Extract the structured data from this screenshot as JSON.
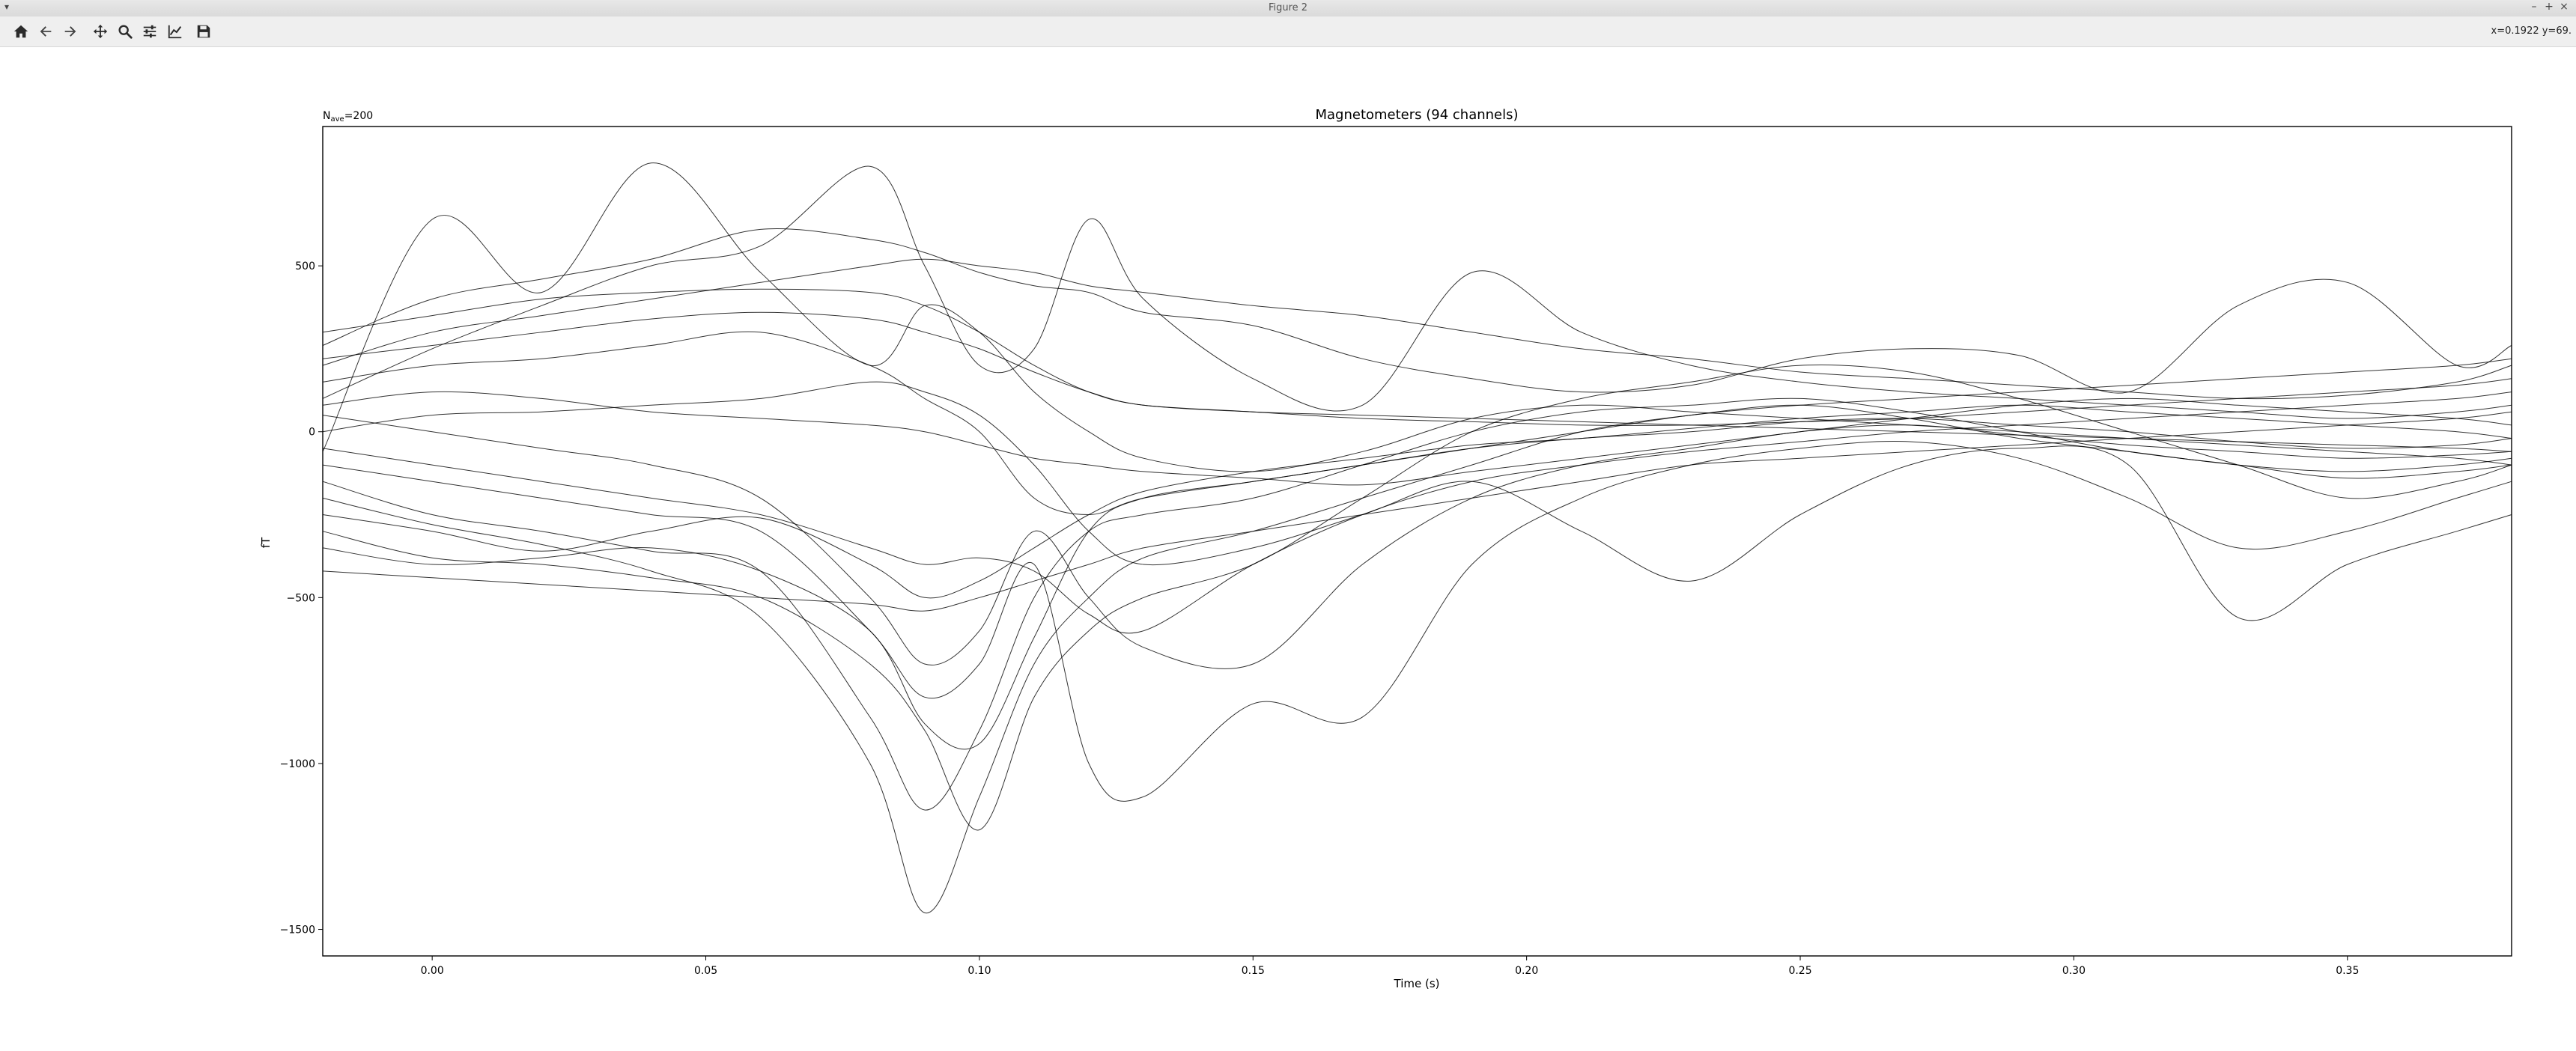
{
  "window": {
    "title": "Figure 2",
    "menu_glyph": "▾",
    "controls": [
      "–",
      "+",
      "×"
    ]
  },
  "toolbar": {
    "buttons": [
      {
        "name": "home-icon",
        "tooltip": "Reset original view"
      },
      {
        "name": "back-arrow-icon",
        "tooltip": "Back to previous view"
      },
      {
        "name": "forward-arrow-icon",
        "tooltip": "Forward to next view"
      },
      {
        "name": "pan-move-icon",
        "tooltip": "Pan axes"
      },
      {
        "name": "zoom-magnifier-icon",
        "tooltip": "Zoom to rectangle"
      },
      {
        "name": "subplots-sliders-icon",
        "tooltip": "Configure subplots"
      },
      {
        "name": "axes-edit-icon",
        "tooltip": "Edit axis, curve and image parameters"
      },
      {
        "name": "save-floppy-icon",
        "tooltip": "Save the figure"
      }
    ],
    "coords": "x=0.1922 y=69."
  },
  "colors": {
    "trace": "#000000",
    "toolbar_icon": "#2b2b2b"
  },
  "chart_data": {
    "type": "line",
    "title": "Magnetometers (94 channels)",
    "nave_label": "N",
    "nave_sub": "ave",
    "nave_value": "=200",
    "xlabel": "Time (s)",
    "ylabel": "fT",
    "xlim": [
      -0.02,
      0.38
    ],
    "ylim": [
      -1580,
      920
    ],
    "xticks": [
      0.0,
      0.05,
      0.1,
      0.15,
      0.2,
      0.25,
      0.3,
      0.35
    ],
    "xtick_labels": [
      "0.00",
      "0.05",
      "0.10",
      "0.15",
      "0.20",
      "0.25",
      "0.30",
      "0.35"
    ],
    "yticks": [
      500,
      0,
      -500,
      -1000,
      -1500
    ],
    "ytick_labels": [
      "500",
      "0",
      "−500",
      "−1000",
      "−1500"
    ],
    "n_channels": 94,
    "x": [
      -0.02,
      0.0,
      0.02,
      0.04,
      0.06,
      0.08,
      0.09,
      0.1,
      0.11,
      0.12,
      0.13,
      0.15,
      0.17,
      0.19,
      0.21,
      0.23,
      0.25,
      0.27,
      0.29,
      0.31,
      0.33,
      0.35,
      0.37,
      0.38
    ],
    "series": [
      {
        "values": [
          -60,
          640,
          420,
          810,
          480,
          200,
          380,
          300,
          120,
          0,
          -80,
          -120,
          -60,
          40,
          80,
          60,
          40,
          20,
          0,
          -20,
          -40,
          -60,
          -80,
          -100
        ]
      },
      {
        "values": [
          100,
          250,
          380,
          500,
          560,
          800,
          500,
          200,
          250,
          640,
          400,
          160,
          80,
          480,
          300,
          200,
          150,
          120,
          100,
          80,
          60,
          40,
          60,
          80
        ]
      },
      {
        "values": [
          260,
          400,
          460,
          520,
          610,
          580,
          540,
          480,
          440,
          420,
          360,
          320,
          220,
          160,
          120,
          140,
          220,
          250,
          230,
          120,
          380,
          450,
          200,
          260
        ]
      },
      {
        "values": [
          -300,
          -380,
          -400,
          -440,
          -500,
          -700,
          -900,
          -1200,
          -800,
          -600,
          -500,
          -400,
          -200,
          0,
          100,
          150,
          200,
          180,
          100,
          0,
          -100,
          -200,
          -150,
          -100
        ]
      },
      {
        "values": [
          -150,
          -250,
          -300,
          -360,
          -420,
          -860,
          -1140,
          -900,
          -500,
          -300,
          -250,
          -200,
          -100,
          0,
          60,
          80,
          100,
          60,
          0,
          -60,
          -100,
          -140,
          -120,
          -100
        ]
      },
      {
        "values": [
          -200,
          -280,
          -340,
          -420,
          -560,
          -1000,
          -1450,
          -1100,
          -700,
          -500,
          -380,
          -300,
          -200,
          -100,
          0,
          50,
          80,
          40,
          -20,
          -60,
          -100,
          -120,
          -100,
          -80
        ]
      },
      {
        "values": [
          -100,
          -150,
          -200,
          -250,
          -300,
          -600,
          -800,
          -700,
          -400,
          -1000,
          -1100,
          -820,
          -860,
          -400,
          -200,
          -100,
          -50,
          -30,
          -80,
          -200,
          -350,
          -300,
          -200,
          -150
        ]
      },
      {
        "values": [
          50,
          0,
          -50,
          -100,
          -200,
          -500,
          -700,
          -600,
          -300,
          -500,
          -650,
          -700,
          -400,
          -200,
          -100,
          -50,
          0,
          20,
          -10,
          -40,
          -60,
          -80,
          -70,
          -60
        ]
      },
      {
        "values": [
          200,
          300,
          350,
          400,
          450,
          500,
          520,
          500,
          480,
          440,
          420,
          380,
          350,
          300,
          250,
          220,
          180,
          160,
          140,
          120,
          100,
          110,
          150,
          200
        ]
      },
      {
        "values": [
          -350,
          -400,
          -380,
          -350,
          -420,
          -600,
          -880,
          -940,
          -620,
          -300,
          -200,
          -150,
          -100,
          -50,
          -20,
          0,
          30,
          40,
          20,
          0,
          -30,
          -50,
          -40,
          -20
        ]
      },
      {
        "values": [
          0,
          50,
          60,
          80,
          100,
          150,
          120,
          50,
          -100,
          -300,
          -400,
          -350,
          -250,
          -150,
          -300,
          -450,
          -250,
          -100,
          -50,
          -100,
          -560,
          -400,
          -300,
          -250
        ]
      },
      {
        "values": [
          150,
          200,
          220,
          260,
          300,
          200,
          100,
          0,
          -200,
          -250,
          -200,
          -150,
          -100,
          -50,
          0,
          50,
          80,
          100,
          120,
          140,
          160,
          180,
          200,
          220
        ]
      },
      {
        "values": [
          -250,
          -300,
          -360,
          -300,
          -260,
          -400,
          -500,
          -450,
          -350,
          -250,
          -180,
          -120,
          -80,
          -40,
          -20,
          10,
          40,
          60,
          80,
          60,
          40,
          20,
          0,
          -20
        ]
      },
      {
        "values": [
          300,
          350,
          400,
          420,
          430,
          420,
          380,
          300,
          200,
          120,
          80,
          60,
          40,
          30,
          20,
          20,
          30,
          40,
          60,
          80,
          100,
          120,
          140,
          160
        ]
      },
      {
        "values": [
          -50,
          -100,
          -150,
          -200,
          -250,
          -350,
          -400,
          -380,
          -420,
          -550,
          -600,
          -400,
          -250,
          -150,
          -100,
          -60,
          -30,
          0,
          20,
          40,
          60,
          80,
          100,
          120
        ]
      },
      {
        "values": [
          80,
          120,
          100,
          60,
          40,
          20,
          0,
          -40,
          -80,
          -100,
          -120,
          -140,
          -160,
          -120,
          -80,
          -40,
          0,
          40,
          80,
          100,
          80,
          60,
          40,
          20
        ]
      },
      {
        "values": [
          -420,
          -440,
          -460,
          -480,
          -500,
          -520,
          -540,
          -500,
          -450,
          -400,
          -350,
          -300,
          -250,
          -200,
          -150,
          -100,
          -80,
          -60,
          -40,
          -20,
          0,
          20,
          40,
          60
        ]
      },
      {
        "values": [
          220,
          260,
          300,
          340,
          360,
          340,
          300,
          250,
          180,
          120,
          80,
          60,
          50,
          40,
          30,
          20,
          10,
          0,
          -10,
          -20,
          -30,
          -40,
          -50,
          -60
        ]
      }
    ]
  }
}
